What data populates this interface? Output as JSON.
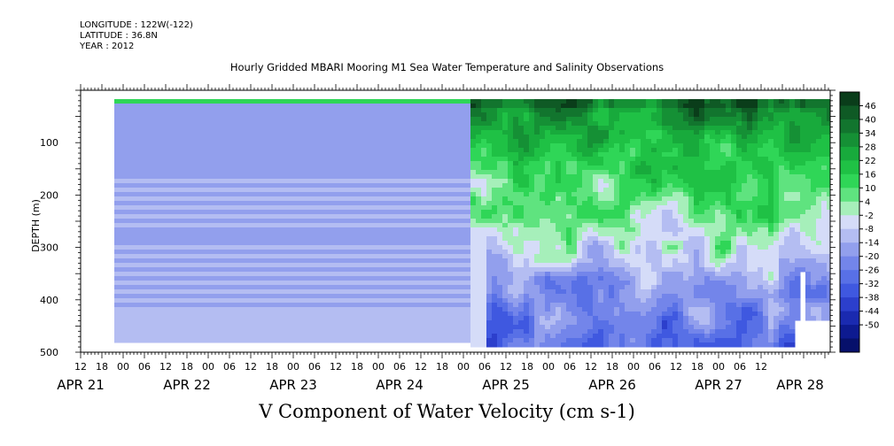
{
  "header": {
    "longitude": "LONGITUDE : 122W(-122)",
    "latitude": "LATITUDE : 36.8N",
    "year": "YEAR : 2012"
  },
  "chart_data": {
    "type": "heatmap",
    "title": "Hourly Gridded MBARI Mooring M1 Sea Water Temperature and Salinity Observations",
    "caption": "V Component of Water Velocity (cm s-1)",
    "ylabel": "DEPTH (m)",
    "xlabel": "",
    "y_axis": {
      "range": [
        0,
        500
      ],
      "inverted": true,
      "ticks": [
        100,
        200,
        300,
        400,
        500
      ]
    },
    "x_axis": {
      "range_hours": "Apr 21 12:00 to Apr 28 14:00 (2012)",
      "hour_ticks": [
        "12",
        "18",
        "00",
        "06",
        "12",
        "18",
        "00",
        "06",
        "12",
        "18",
        "00",
        "06",
        "12",
        "18",
        "00",
        "06",
        "12",
        "18",
        "00",
        "06",
        "12",
        "18",
        "00",
        "06",
        "12",
        "18",
        "00",
        "06",
        "12",
        "18",
        "00",
        "06",
        "12"
      ],
      "date_labels": [
        {
          "label": "APR 21",
          "center_hour": 0
        },
        {
          "label": "APR 22",
          "center_hour": 30
        },
        {
          "label": "APR 23",
          "center_hour": 60
        },
        {
          "label": "APR 24",
          "center_hour": 90
        },
        {
          "label": "APR 25",
          "center_hour": 120
        },
        {
          "label": "APR 26",
          "center_hour": 150
        },
        {
          "label": "APR 27",
          "center_hour": 180
        },
        {
          "label": "APR 28",
          "center_hour": 203
        }
      ]
    },
    "colorbar": {
      "labels": [
        "46",
        "40",
        "34",
        "28",
        "22",
        "16",
        "10",
        "4",
        "-2",
        "-8",
        "-14",
        "-20",
        "-26",
        "-32",
        "-38",
        "-44",
        "-50"
      ],
      "colors": [
        "#0a3d1a",
        "#0f5a25",
        "#12752e",
        "#159035",
        "#18aa3c",
        "#1fc145",
        "#2fd657",
        "#5fe37f",
        "#a6efba",
        "#d5dcf8",
        "#b4bdf2",
        "#929fed",
        "#7385ea",
        "#5870e6",
        "#3f58e0",
        "#2c3fcc",
        "#1a2ab0",
        "#0d1a90",
        "#06106b"
      ]
    },
    "summary": "Before Apr 25 ~05:00 the field shows a green layer near the surface (about 20-40 m) over uniform light-blue values to about 475 m; afterwards the field is variable, with green (positive V) dominating the upper 100 m and mixed blue/green patches below, extending to about 485 m."
  }
}
